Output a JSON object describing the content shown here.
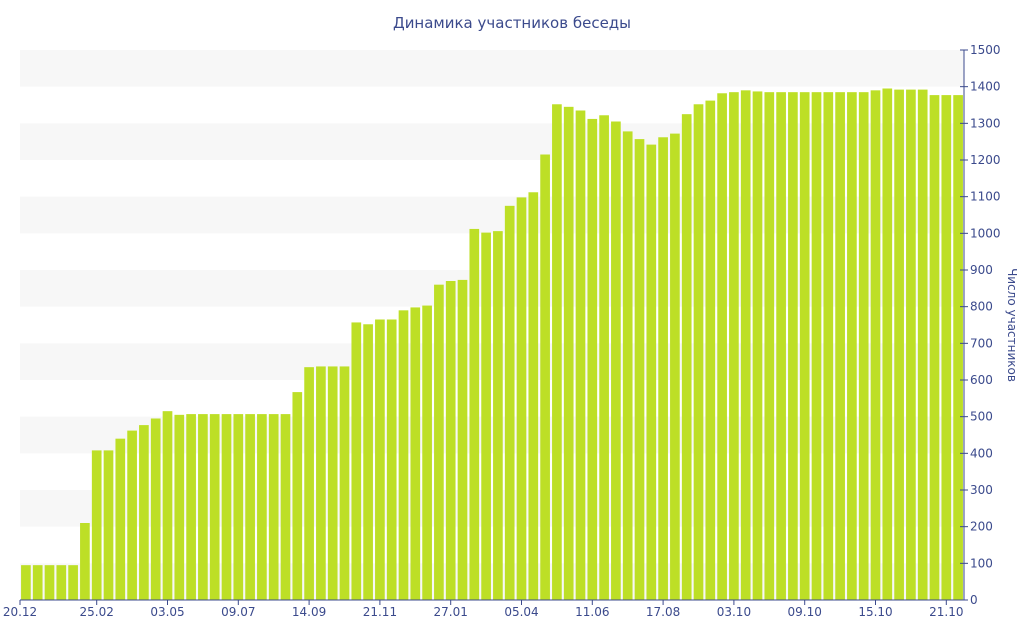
{
  "chart_data": {
    "type": "bar",
    "title": "Динамика участников беседы",
    "xlabel": "",
    "ylabel": "Число участников",
    "ylim": [
      0,
      1500
    ],
    "y_ticks": [
      0,
      100,
      200,
      300,
      400,
      500,
      600,
      700,
      800,
      900,
      1000,
      1100,
      1200,
      1300,
      1400,
      1500
    ],
    "y_axis_position": "right",
    "grid": "alternating horizontal bands",
    "legend": "none",
    "x_tick_labels": [
      {
        "label": "20.12",
        "index": 0
      },
      {
        "label": "25.02",
        "index": 6
      },
      {
        "label": "03.05",
        "index": 12
      },
      {
        "label": "09.07",
        "index": 18
      },
      {
        "label": "14.09",
        "index": 24
      },
      {
        "label": "21.11",
        "index": 30
      },
      {
        "label": "27.01",
        "index": 36
      },
      {
        "label": "05.04",
        "index": 42
      },
      {
        "label": "11.06",
        "index": 48
      },
      {
        "label": "17.08",
        "index": 54
      },
      {
        "label": "03.10",
        "index": 60
      },
      {
        "label": "09.10",
        "index": 66
      },
      {
        "label": "15.10",
        "index": 72
      },
      {
        "label": "21.10",
        "index": 78
      }
    ],
    "values": [
      95,
      95,
      95,
      95,
      95,
      210,
      408,
      408,
      440,
      462,
      477,
      495,
      515,
      505,
      507,
      507,
      507,
      507,
      507,
      507,
      507,
      507,
      507,
      567,
      635,
      637,
      637,
      637,
      757,
      752,
      765,
      765,
      790,
      798,
      803,
      860,
      870,
      873,
      1012,
      1002,
      1006,
      1075,
      1098,
      1112,
      1215,
      1352,
      1345,
      1335,
      1312,
      1322,
      1305,
      1278,
      1257,
      1242,
      1262,
      1272,
      1325,
      1352,
      1362,
      1382,
      1385,
      1390,
      1387,
      1385,
      1385,
      1385,
      1385,
      1385,
      1385,
      1385,
      1385,
      1385,
      1390,
      1395,
      1392,
      1392,
      1392,
      1377,
      1377,
      1377
    ],
    "colors": {
      "bar": "#bddf26",
      "band": "#f7f7f7",
      "text": "#3b4a8c",
      "axis": "#3b4a8c"
    }
  }
}
